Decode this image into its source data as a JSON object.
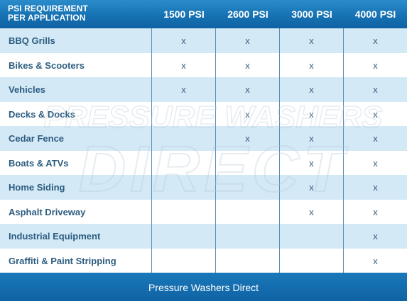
{
  "header": {
    "title_line1": "PSI REQUIREMENT",
    "title_line2": "PER APPLICATION",
    "columns": [
      "1500 PSI",
      "2600 PSI",
      "3000 PSI",
      "4000 PSI"
    ]
  },
  "rows": [
    {
      "label": "BBQ Grills",
      "marks": [
        "x",
        "x",
        "x",
        "x"
      ]
    },
    {
      "label": "Bikes & Scooters",
      "marks": [
        "x",
        "x",
        "x",
        "x"
      ]
    },
    {
      "label": "Vehicles",
      "marks": [
        "x",
        "x",
        "x",
        "x"
      ]
    },
    {
      "label": "Decks & Docks",
      "marks": [
        "",
        "x",
        "x",
        "x"
      ]
    },
    {
      "label": "Cedar Fence",
      "marks": [
        "",
        "x",
        "x",
        "x"
      ]
    },
    {
      "label": "Boats & ATVs",
      "marks": [
        "",
        "",
        "x",
        "x"
      ]
    },
    {
      "label": "Home Siding",
      "marks": [
        "",
        "",
        "x",
        "x"
      ]
    },
    {
      "label": "Asphalt Driveway",
      "marks": [
        "",
        "",
        "x",
        "x"
      ]
    },
    {
      "label": "Industrial Equipment",
      "marks": [
        "",
        "",
        "",
        "x"
      ]
    },
    {
      "label": "Graffiti & Paint Stripping",
      "marks": [
        "",
        "",
        "",
        "x"
      ]
    }
  ],
  "watermark": {
    "line1": "PRESSURE WASHERS",
    "line2": "DIRECT"
  },
  "footer": {
    "text": "Pressure Washers Direct"
  },
  "colors": {
    "header_blue": "#1672b3",
    "row_tint": "#d3e9f6",
    "label_text": "#2d5d80"
  }
}
